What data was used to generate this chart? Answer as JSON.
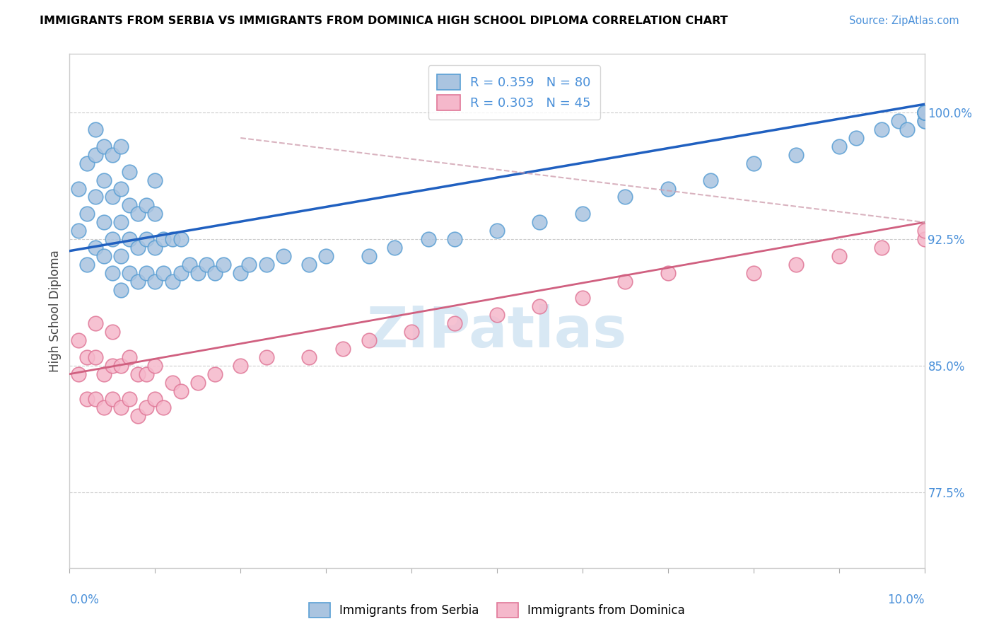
{
  "title": "IMMIGRANTS FROM SERBIA VS IMMIGRANTS FROM DOMINICA HIGH SCHOOL DIPLOMA CORRELATION CHART",
  "source": "Source: ZipAtlas.com",
  "ylabel": "High School Diploma",
  "yticks": [
    77.5,
    85.0,
    92.5,
    100.0
  ],
  "ytick_labels": [
    "77.5%",
    "85.0%",
    "92.5%",
    "100.0%"
  ],
  "xlim": [
    0.0,
    10.0
  ],
  "ylim": [
    73.0,
    103.5
  ],
  "serbia_color": "#aac4e0",
  "serbia_edge": "#5a9fd4",
  "dominica_color": "#f5b8cb",
  "dominica_edge": "#e07898",
  "serbia_line_color": "#2060c0",
  "dominica_line_color": "#d06080",
  "dashed_line_color": "#d0a0b0",
  "serbia_line": [
    0.0,
    10.0,
    91.8,
    100.5
  ],
  "dominica_line": [
    0.0,
    10.0,
    84.5,
    93.5
  ],
  "dashed_line": [
    2.0,
    10.0,
    98.5,
    93.5
  ],
  "watermark_text": "ZIPatlas",
  "watermark_color": "#d8e8f4",
  "legend_label1": "R = 0.359   N = 80",
  "legend_label2": "R = 0.303   N = 45",
  "bottom_label1": "Immigrants from Serbia",
  "bottom_label2": "Immigrants from Dominica",
  "serbia_x": [
    0.1,
    0.1,
    0.2,
    0.2,
    0.2,
    0.3,
    0.3,
    0.3,
    0.3,
    0.4,
    0.4,
    0.4,
    0.4,
    0.5,
    0.5,
    0.5,
    0.5,
    0.6,
    0.6,
    0.6,
    0.6,
    0.6,
    0.7,
    0.7,
    0.7,
    0.7,
    0.8,
    0.8,
    0.8,
    0.9,
    0.9,
    0.9,
    1.0,
    1.0,
    1.0,
    1.0,
    1.1,
    1.1,
    1.2,
    1.2,
    1.3,
    1.3,
    1.4,
    1.5,
    1.6,
    1.7,
    1.8,
    2.0,
    2.1,
    2.3,
    2.5,
    2.8,
    3.0,
    3.5,
    3.8,
    4.2,
    4.5,
    5.0,
    5.5,
    6.0,
    6.5,
    7.0,
    7.5,
    8.0,
    8.5,
    9.0,
    9.2,
    9.5,
    9.7,
    9.8,
    10.0,
    10.0,
    10.0,
    10.0,
    10.0,
    10.0,
    10.0,
    10.0,
    10.0,
    10.0
  ],
  "serbia_y": [
    93.0,
    95.5,
    91.0,
    94.0,
    97.0,
    92.0,
    95.0,
    97.5,
    99.0,
    91.5,
    93.5,
    96.0,
    98.0,
    90.5,
    92.5,
    95.0,
    97.5,
    89.5,
    91.5,
    93.5,
    95.5,
    98.0,
    90.5,
    92.5,
    94.5,
    96.5,
    90.0,
    92.0,
    94.0,
    90.5,
    92.5,
    94.5,
    90.0,
    92.0,
    94.0,
    96.0,
    90.5,
    92.5,
    90.0,
    92.5,
    90.5,
    92.5,
    91.0,
    90.5,
    91.0,
    90.5,
    91.0,
    90.5,
    91.0,
    91.0,
    91.5,
    91.0,
    91.5,
    91.5,
    92.0,
    92.5,
    92.5,
    93.0,
    93.5,
    94.0,
    95.0,
    95.5,
    96.0,
    97.0,
    97.5,
    98.0,
    98.5,
    99.0,
    99.5,
    99.0,
    99.5,
    100.0,
    99.5,
    100.0,
    100.0,
    100.0,
    100.0,
    100.0,
    100.0,
    100.0
  ],
  "dominica_x": [
    0.1,
    0.1,
    0.2,
    0.2,
    0.3,
    0.3,
    0.3,
    0.4,
    0.4,
    0.5,
    0.5,
    0.5,
    0.6,
    0.6,
    0.7,
    0.7,
    0.8,
    0.8,
    0.9,
    0.9,
    1.0,
    1.0,
    1.1,
    1.2,
    1.3,
    1.5,
    1.7,
    2.0,
    2.3,
    2.8,
    3.2,
    3.5,
    4.0,
    4.5,
    5.0,
    5.5,
    6.0,
    6.5,
    7.0,
    8.0,
    8.5,
    9.0,
    9.5,
    10.0,
    10.0
  ],
  "dominica_y": [
    84.5,
    86.5,
    83.0,
    85.5,
    83.0,
    85.5,
    87.5,
    82.5,
    84.5,
    83.0,
    85.0,
    87.0,
    82.5,
    85.0,
    83.0,
    85.5,
    82.0,
    84.5,
    82.5,
    84.5,
    83.0,
    85.0,
    82.5,
    84.0,
    83.5,
    84.0,
    84.5,
    85.0,
    85.5,
    85.5,
    86.0,
    86.5,
    87.0,
    87.5,
    88.0,
    88.5,
    89.0,
    90.0,
    90.5,
    90.5,
    91.0,
    91.5,
    92.0,
    92.5,
    93.0
  ]
}
